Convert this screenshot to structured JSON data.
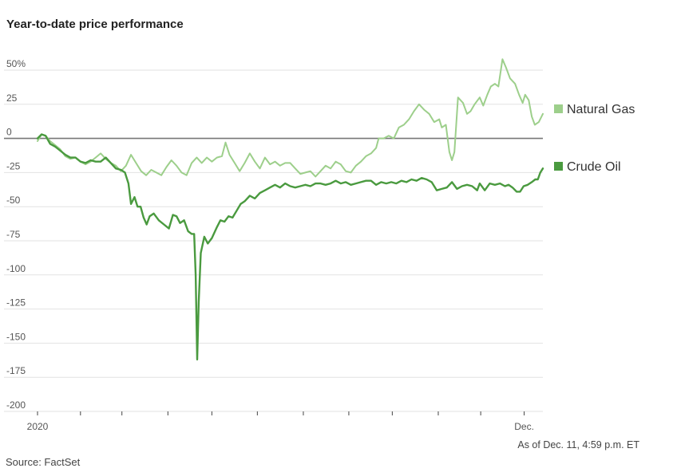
{
  "title": "Year-to-date price performance",
  "as_of": "As of Dec. 11, 4:59 p.m. ET",
  "source": "Source: FactSet",
  "colors": {
    "natural_gas": "#9dcf8b",
    "crude_oil": "#4a9a3f",
    "zero_line": "#777777",
    "grid": "#e2e2e2"
  },
  "chart_data": {
    "type": "line",
    "title": "Year-to-date price performance",
    "xlabel": "",
    "ylabel": "",
    "ylim": [
      -200,
      50
    ],
    "xlim": [
      0,
      1
    ],
    "grid": true,
    "legend": "right",
    "y_ticks": [
      {
        "value": 50,
        "label": "50%"
      },
      {
        "value": 25,
        "label": "25"
      },
      {
        "value": 0,
        "label": "0"
      },
      {
        "value": -25,
        "label": "-25"
      },
      {
        "value": -50,
        "label": "-50"
      },
      {
        "value": -75,
        "label": "-75"
      },
      {
        "value": -100,
        "label": "-100"
      },
      {
        "value": -125,
        "label": "-125"
      },
      {
        "value": -150,
        "label": "-150"
      },
      {
        "value": -175,
        "label": "-175"
      },
      {
        "value": -200,
        "label": "-200"
      }
    ],
    "x_ticks": [
      {
        "value": 0,
        "label": "2020"
      },
      {
        "value": 0.085,
        "label": ""
      },
      {
        "value": 0.167,
        "label": ""
      },
      {
        "value": 0.258,
        "label": ""
      },
      {
        "value": 0.345,
        "label": ""
      },
      {
        "value": 0.435,
        "label": ""
      },
      {
        "value": 0.526,
        "label": ""
      },
      {
        "value": 0.616,
        "label": ""
      },
      {
        "value": 0.702,
        "label": ""
      },
      {
        "value": 0.793,
        "label": ""
      },
      {
        "value": 0.877,
        "label": ""
      },
      {
        "value": 0.963,
        "label": "Dec."
      }
    ],
    "series": [
      {
        "name": "Natural Gas",
        "points": [
          [
            0.0,
            -2
          ],
          [
            0.008,
            3
          ],
          [
            0.016,
            2
          ],
          [
            0.025,
            -2
          ],
          [
            0.035,
            -5
          ],
          [
            0.045,
            -8
          ],
          [
            0.055,
            -13
          ],
          [
            0.065,
            -15
          ],
          [
            0.075,
            -14
          ],
          [
            0.085,
            -17
          ],
          [
            0.095,
            -19
          ],
          [
            0.105,
            -17
          ],
          [
            0.115,
            -14
          ],
          [
            0.125,
            -11
          ],
          [
            0.135,
            -15
          ],
          [
            0.145,
            -18
          ],
          [
            0.155,
            -20
          ],
          [
            0.165,
            -24
          ],
          [
            0.175,
            -20
          ],
          [
            0.185,
            -12
          ],
          [
            0.195,
            -18
          ],
          [
            0.205,
            -24
          ],
          [
            0.215,
            -27
          ],
          [
            0.225,
            -23
          ],
          [
            0.235,
            -25
          ],
          [
            0.245,
            -27
          ],
          [
            0.255,
            -21
          ],
          [
            0.265,
            -16
          ],
          [
            0.275,
            -20
          ],
          [
            0.285,
            -25
          ],
          [
            0.295,
            -27
          ],
          [
            0.305,
            -18
          ],
          [
            0.315,
            -14
          ],
          [
            0.325,
            -18
          ],
          [
            0.335,
            -14
          ],
          [
            0.345,
            -17
          ],
          [
            0.355,
            -14
          ],
          [
            0.365,
            -13
          ],
          [
            0.372,
            -3
          ],
          [
            0.38,
            -12
          ],
          [
            0.39,
            -18
          ],
          [
            0.4,
            -24
          ],
          [
            0.41,
            -18
          ],
          [
            0.42,
            -11
          ],
          [
            0.43,
            -17
          ],
          [
            0.44,
            -22
          ],
          [
            0.45,
            -14
          ],
          [
            0.46,
            -19
          ],
          [
            0.47,
            -17
          ],
          [
            0.48,
            -20
          ],
          [
            0.49,
            -18
          ],
          [
            0.5,
            -18
          ],
          [
            0.51,
            -22
          ],
          [
            0.52,
            -26
          ],
          [
            0.53,
            -25
          ],
          [
            0.54,
            -24
          ],
          [
            0.55,
            -28
          ],
          [
            0.56,
            -24
          ],
          [
            0.57,
            -20
          ],
          [
            0.58,
            -22
          ],
          [
            0.59,
            -17
          ],
          [
            0.6,
            -19
          ],
          [
            0.61,
            -24
          ],
          [
            0.62,
            -25
          ],
          [
            0.63,
            -20
          ],
          [
            0.64,
            -17
          ],
          [
            0.65,
            -13
          ],
          [
            0.66,
            -11
          ],
          [
            0.67,
            -7
          ],
          [
            0.675,
            0
          ],
          [
            0.685,
            0
          ],
          [
            0.695,
            2
          ],
          [
            0.705,
            0
          ],
          [
            0.715,
            8
          ],
          [
            0.725,
            10
          ],
          [
            0.735,
            14
          ],
          [
            0.745,
            20
          ],
          [
            0.755,
            25
          ],
          [
            0.765,
            21
          ],
          [
            0.775,
            18
          ],
          [
            0.785,
            12
          ],
          [
            0.795,
            14
          ],
          [
            0.8,
            8
          ],
          [
            0.808,
            10
          ],
          [
            0.815,
            -10
          ],
          [
            0.82,
            -16
          ],
          [
            0.825,
            -10
          ],
          [
            0.832,
            30
          ],
          [
            0.842,
            26
          ],
          [
            0.85,
            18
          ],
          [
            0.857,
            20
          ],
          [
            0.865,
            25
          ],
          [
            0.875,
            30
          ],
          [
            0.882,
            24
          ],
          [
            0.89,
            32
          ],
          [
            0.897,
            38
          ],
          [
            0.905,
            40
          ],
          [
            0.912,
            38
          ],
          [
            0.92,
            58
          ],
          [
            0.927,
            52
          ],
          [
            0.935,
            44
          ],
          [
            0.945,
            40
          ],
          [
            0.953,
            32
          ],
          [
            0.96,
            26
          ],
          [
            0.965,
            32
          ],
          [
            0.972,
            28
          ],
          [
            0.978,
            16
          ],
          [
            0.984,
            10
          ],
          [
            0.992,
            12
          ],
          [
            1.0,
            18
          ]
        ]
      },
      {
        "name": "Crude Oil",
        "points": [
          [
            0.0,
            0
          ],
          [
            0.008,
            3
          ],
          [
            0.016,
            2
          ],
          [
            0.025,
            -4
          ],
          [
            0.035,
            -6
          ],
          [
            0.045,
            -9
          ],
          [
            0.055,
            -12
          ],
          [
            0.065,
            -14
          ],
          [
            0.075,
            -14
          ],
          [
            0.085,
            -17
          ],
          [
            0.095,
            -18
          ],
          [
            0.105,
            -16
          ],
          [
            0.115,
            -17
          ],
          [
            0.125,
            -17
          ],
          [
            0.135,
            -14
          ],
          [
            0.145,
            -18
          ],
          [
            0.155,
            -22
          ],
          [
            0.165,
            -23
          ],
          [
            0.173,
            -25
          ],
          [
            0.18,
            -33
          ],
          [
            0.185,
            -48
          ],
          [
            0.192,
            -43
          ],
          [
            0.198,
            -50
          ],
          [
            0.204,
            -50
          ],
          [
            0.21,
            -58
          ],
          [
            0.216,
            -63
          ],
          [
            0.222,
            -57
          ],
          [
            0.23,
            -55
          ],
          [
            0.24,
            -60
          ],
          [
            0.25,
            -63
          ],
          [
            0.26,
            -66
          ],
          [
            0.268,
            -56
          ],
          [
            0.275,
            -57
          ],
          [
            0.282,
            -62
          ],
          [
            0.29,
            -60
          ],
          [
            0.298,
            -68
          ],
          [
            0.305,
            -70
          ],
          [
            0.31,
            -70
          ],
          [
            0.313,
            -100
          ],
          [
            0.316,
            -162
          ],
          [
            0.319,
            -120
          ],
          [
            0.323,
            -84
          ],
          [
            0.33,
            -72
          ],
          [
            0.337,
            -77
          ],
          [
            0.345,
            -73
          ],
          [
            0.355,
            -65
          ],
          [
            0.362,
            -60
          ],
          [
            0.37,
            -61
          ],
          [
            0.378,
            -57
          ],
          [
            0.386,
            -58
          ],
          [
            0.394,
            -53
          ],
          [
            0.402,
            -48
          ],
          [
            0.41,
            -46
          ],
          [
            0.42,
            -42
          ],
          [
            0.43,
            -44
          ],
          [
            0.44,
            -40
          ],
          [
            0.45,
            -38
          ],
          [
            0.46,
            -36
          ],
          [
            0.47,
            -34
          ],
          [
            0.48,
            -36
          ],
          [
            0.49,
            -33
          ],
          [
            0.5,
            -35
          ],
          [
            0.51,
            -36
          ],
          [
            0.52,
            -35
          ],
          [
            0.53,
            -34
          ],
          [
            0.54,
            -35
          ],
          [
            0.55,
            -33
          ],
          [
            0.56,
            -33
          ],
          [
            0.57,
            -34
          ],
          [
            0.58,
            -33
          ],
          [
            0.59,
            -31
          ],
          [
            0.6,
            -33
          ],
          [
            0.61,
            -32
          ],
          [
            0.62,
            -34
          ],
          [
            0.63,
            -33
          ],
          [
            0.64,
            -32
          ],
          [
            0.65,
            -31
          ],
          [
            0.66,
            -31
          ],
          [
            0.67,
            -34
          ],
          [
            0.68,
            -32
          ],
          [
            0.69,
            -33
          ],
          [
            0.7,
            -32
          ],
          [
            0.71,
            -33
          ],
          [
            0.72,
            -31
          ],
          [
            0.73,
            -32
          ],
          [
            0.74,
            -30
          ],
          [
            0.75,
            -31
          ],
          [
            0.76,
            -29
          ],
          [
            0.77,
            -30
          ],
          [
            0.78,
            -32
          ],
          [
            0.79,
            -38
          ],
          [
            0.8,
            -37
          ],
          [
            0.81,
            -36
          ],
          [
            0.82,
            -32
          ],
          [
            0.83,
            -37
          ],
          [
            0.84,
            -35
          ],
          [
            0.85,
            -34
          ],
          [
            0.86,
            -35
          ],
          [
            0.87,
            -38
          ],
          [
            0.875,
            -33
          ],
          [
            0.885,
            -38
          ],
          [
            0.895,
            -33
          ],
          [
            0.905,
            -34
          ],
          [
            0.915,
            -33
          ],
          [
            0.925,
            -35
          ],
          [
            0.932,
            -34
          ],
          [
            0.94,
            -36
          ],
          [
            0.948,
            -39
          ],
          [
            0.955,
            -39
          ],
          [
            0.962,
            -35
          ],
          [
            0.97,
            -34
          ],
          [
            0.978,
            -32
          ],
          [
            0.985,
            -30
          ],
          [
            0.99,
            -30
          ],
          [
            0.995,
            -25
          ],
          [
            1.0,
            -22
          ]
        ]
      }
    ]
  }
}
